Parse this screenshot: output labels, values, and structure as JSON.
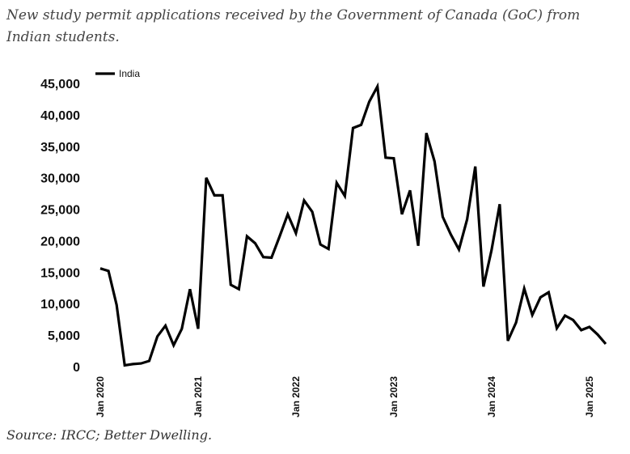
{
  "title": "New study permit applications received by the Government of Canada (GoC) from Indian students.",
  "source": "Source: IRCC; Better Dwelling.",
  "colors": {
    "series": "#000000",
    "text": "#111111"
  },
  "chart_data": {
    "type": "line",
    "title": "New study permit applications received by the Government of Canada (GoC) from Indian students.",
    "xlabel": "",
    "ylabel": "",
    "ylim": [
      0,
      45000
    ],
    "yticks": [
      0,
      5000,
      10000,
      15000,
      20000,
      25000,
      30000,
      35000,
      40000,
      45000
    ],
    "ytick_labels": [
      "0",
      "5,000",
      "10,000",
      "15,000",
      "20,000",
      "25,000",
      "30,000",
      "35,000",
      "40,000",
      "45,000"
    ],
    "xtick_labels": [
      "Jan 2020",
      "Jan 2021",
      "Jan 2022",
      "Jan 2023",
      "Jan 2024",
      "Jan 2025"
    ],
    "grid": false,
    "legend": {
      "position": "top-left",
      "entries": [
        "India"
      ]
    },
    "series": [
      {
        "name": "India",
        "x": [
          "2020-01",
          "2020-02",
          "2020-03",
          "2020-04",
          "2020-05",
          "2020-06",
          "2020-07",
          "2020-08",
          "2020-09",
          "2020-10",
          "2020-11",
          "2020-12",
          "2021-01",
          "2021-02",
          "2021-03",
          "2021-04",
          "2021-05",
          "2021-06",
          "2021-07",
          "2021-08",
          "2021-09",
          "2021-10",
          "2021-11",
          "2021-12",
          "2022-01",
          "2022-02",
          "2022-03",
          "2022-04",
          "2022-05",
          "2022-06",
          "2022-07",
          "2022-08",
          "2022-09",
          "2022-10",
          "2022-11",
          "2022-12",
          "2023-01",
          "2023-02",
          "2023-03",
          "2023-04",
          "2023-05",
          "2023-06",
          "2023-07",
          "2023-08",
          "2023-09",
          "2023-10",
          "2023-11",
          "2023-12",
          "2024-01",
          "2024-02",
          "2024-03",
          "2024-04",
          "2024-05",
          "2024-06",
          "2024-07",
          "2024-08",
          "2024-09",
          "2024-10",
          "2024-11",
          "2024-12",
          "2025-01",
          "2025-02",
          "2025-03"
        ],
        "values": [
          15600,
          15200,
          9800,
          200,
          400,
          500,
          900,
          4800,
          6500,
          3400,
          6000,
          12300,
          6000,
          30000,
          27200,
          27200,
          13000,
          12300,
          20700,
          19600,
          17400,
          17300,
          20700,
          24200,
          21200,
          26400,
          24600,
          19400,
          18700,
          29200,
          27100,
          37900,
          38400,
          42100,
          44500,
          33200,
          33100,
          24200,
          28000,
          19200,
          37100,
          32600,
          23800,
          21000,
          18600,
          23400,
          31800,
          12700,
          18500,
          25800,
          4100,
          7000,
          12400,
          8200,
          11000,
          11800,
          6100,
          8100,
          7400,
          5800,
          6300,
          5100,
          3600
        ]
      }
    ]
  }
}
